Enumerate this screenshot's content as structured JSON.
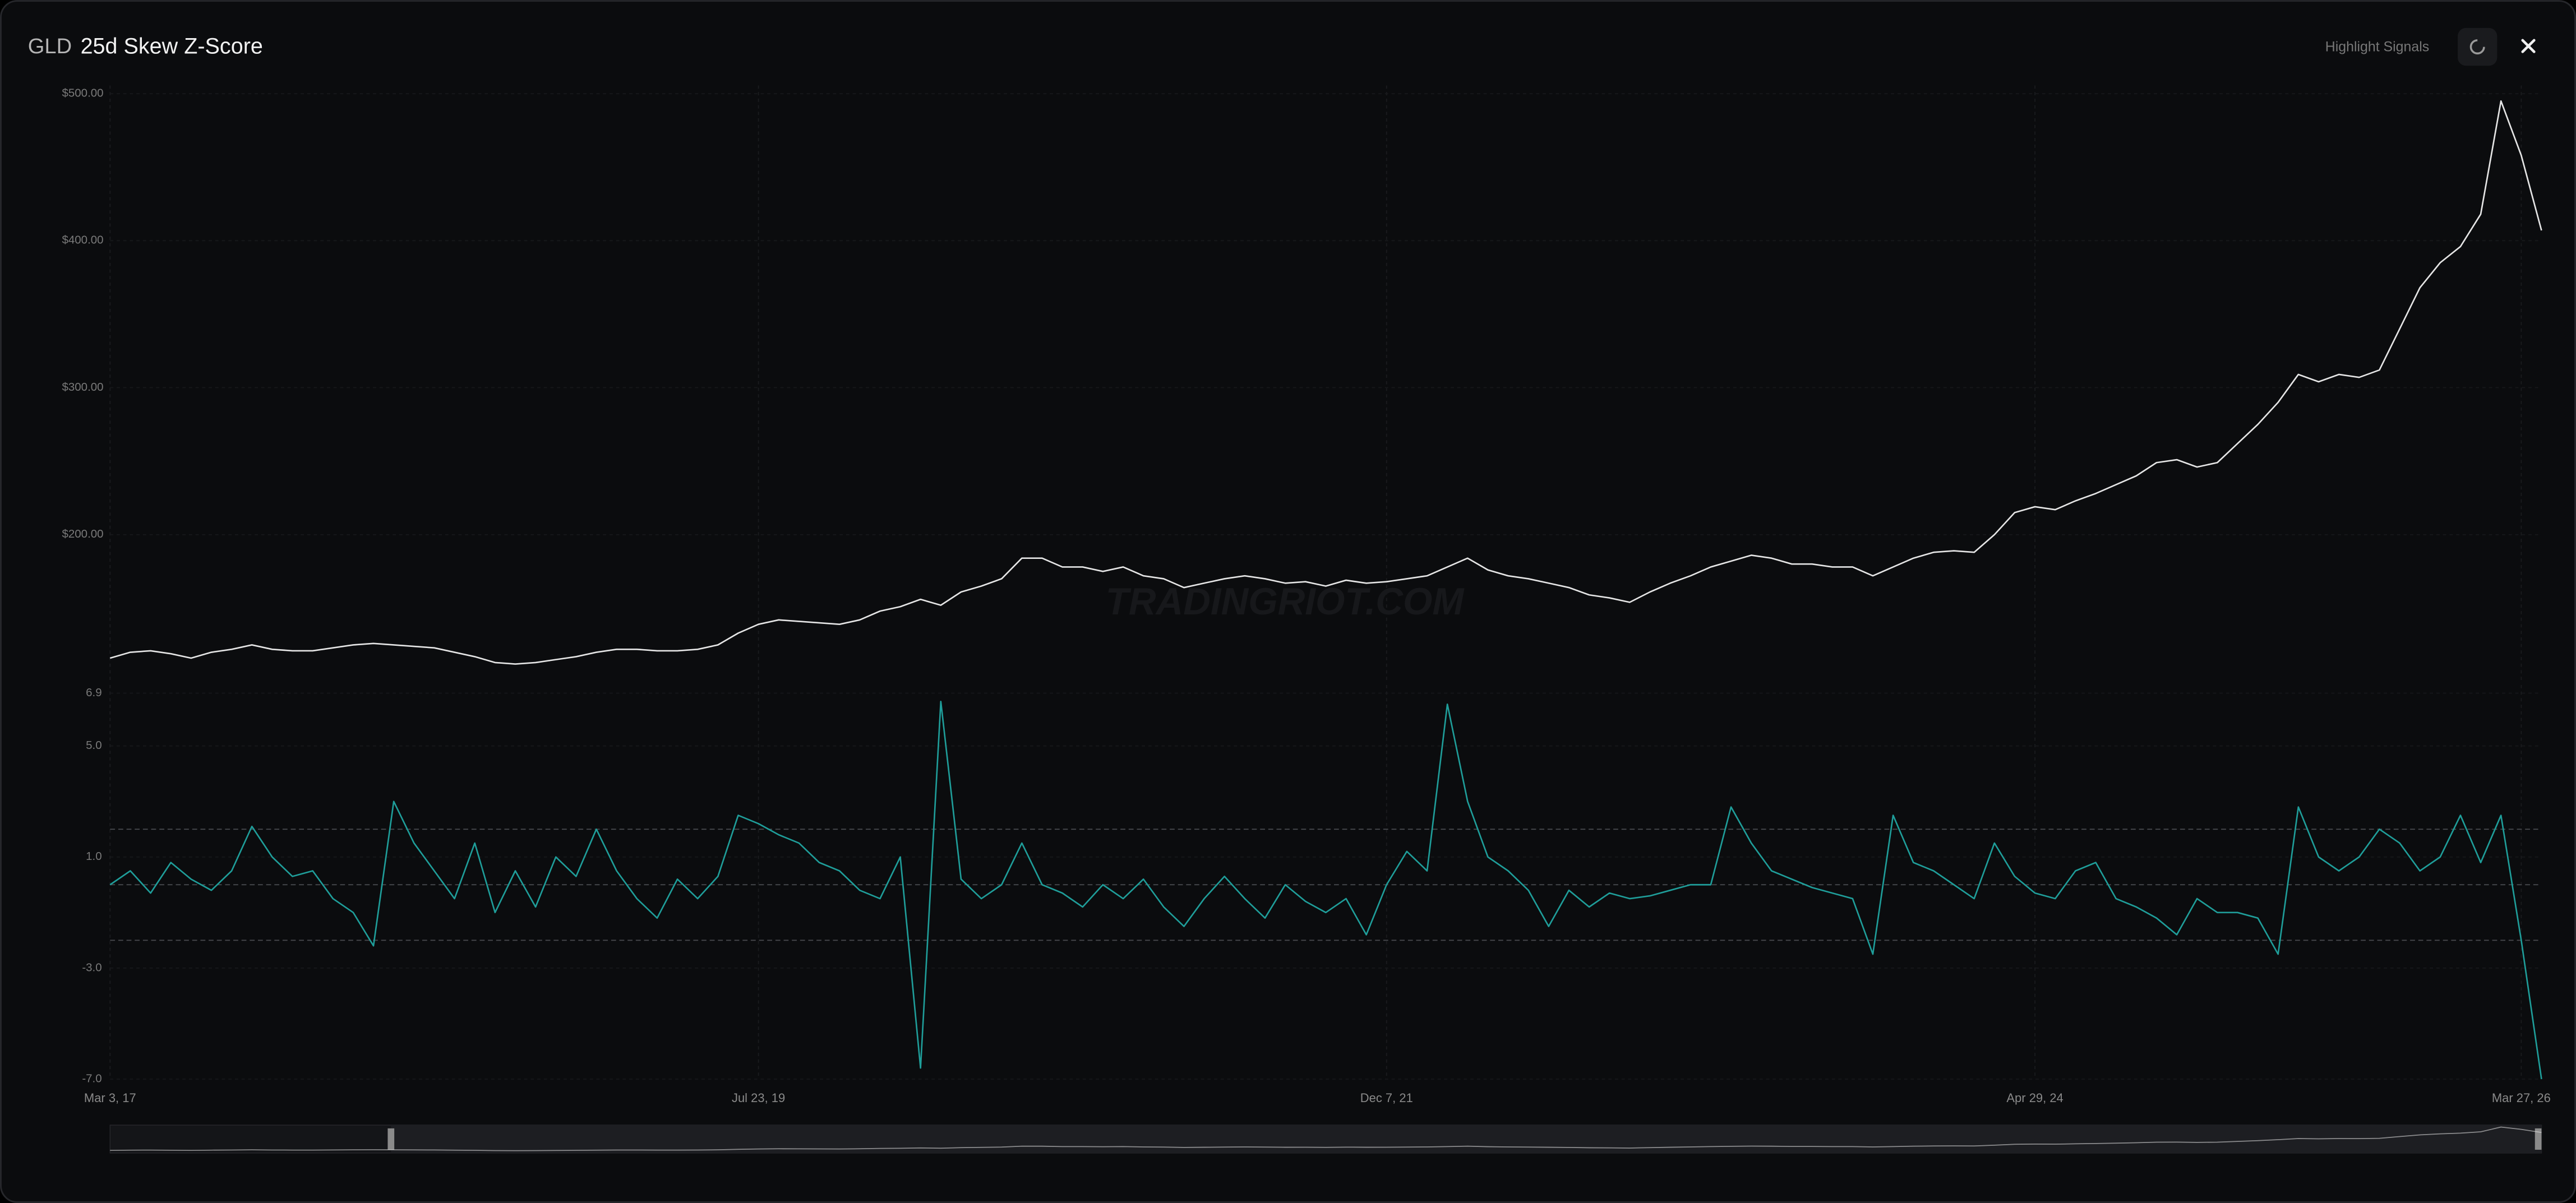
{
  "header": {
    "ticker": "GLD",
    "title": "25d Skew Z-Score",
    "button": "Highlight Signals"
  },
  "watermark": "TRADINGRIOT.COM",
  "chart_data": {
    "type": "line",
    "categories": [
      "Mar 3, 17",
      null,
      null,
      null,
      null,
      null,
      null,
      null,
      null,
      null,
      null,
      null,
      null,
      null,
      null,
      null,
      null,
      null,
      null,
      null,
      null,
      null,
      null,
      null,
      null,
      null,
      null,
      null,
      null,
      null,
      null,
      null,
      "Jul 23, 19",
      null,
      null,
      null,
      null,
      null,
      null,
      null,
      null,
      null,
      null,
      null,
      null,
      null,
      null,
      null,
      null,
      null,
      null,
      null,
      null,
      null,
      null,
      null,
      null,
      null,
      null,
      null,
      null,
      null,
      null,
      "Dec 7, 21",
      null,
      null,
      null,
      null,
      null,
      null,
      null,
      null,
      null,
      null,
      null,
      null,
      null,
      null,
      null,
      null,
      null,
      null,
      null,
      null,
      null,
      null,
      null,
      null,
      null,
      null,
      null,
      null,
      null,
      null,
      null,
      "Apr 29, 24",
      null,
      null,
      null,
      null,
      null,
      null,
      null,
      null,
      null,
      null,
      null,
      null,
      null,
      null,
      null,
      null,
      null,
      null,
      null,
      null,
      null,
      null,
      null,
      "Mar 27, 26",
      null
    ],
    "panels": [
      {
        "color": "#e6e6e6",
        "ylim": [
          100,
          500
        ],
        "yticks": [
          {
            "value": 200,
            "label": "$200.00"
          },
          {
            "value": 300,
            "label": "$300.00"
          },
          {
            "value": 400,
            "label": "$400.00"
          },
          {
            "value": 500,
            "label": "$500.00"
          }
        ],
        "values": [
          116,
          120,
          121,
          119,
          116,
          120,
          122,
          125,
          122,
          121,
          121,
          123,
          125,
          126,
          125,
          124,
          123,
          120,
          117,
          113,
          112,
          113,
          115,
          117,
          120,
          122,
          122,
          121,
          121,
          122,
          125,
          133,
          139,
          142,
          141,
          140,
          139,
          142,
          148,
          151,
          156,
          152,
          161,
          165,
          170,
          184,
          184,
          178,
          178,
          175,
          178,
          172,
          170,
          164,
          167,
          170,
          172,
          170,
          167,
          168,
          165,
          169,
          167,
          168,
          170,
          172,
          178,
          184,
          176,
          172,
          170,
          167,
          164,
          159,
          157,
          154,
          161,
          167,
          172,
          178,
          182,
          186,
          184,
          180,
          180,
          178,
          178,
          172,
          178,
          184,
          188,
          189,
          188,
          200,
          215,
          219,
          217,
          223,
          228,
          234,
          240,
          249,
          251,
          246,
          249,
          262,
          275,
          290,
          309,
          304,
          309,
          307,
          312,
          340,
          368,
          385,
          396,
          418,
          495,
          458,
          407
        ]
      },
      {
        "color": "#1f9e9a",
        "ylim": [
          -7,
          6.9
        ],
        "yticks": [
          {
            "value": -7,
            "label": "-7.0"
          },
          {
            "value": -3,
            "label": "-3.0"
          },
          {
            "value": 1,
            "label": "1.0"
          },
          {
            "value": 5,
            "label": "5.0"
          },
          6.9
        ],
        "reference_lines": [
          2,
          0,
          -2
        ],
        "values": [
          0.0,
          0.5,
          -0.3,
          0.8,
          0.2,
          -0.2,
          0.5,
          2.1,
          1.0,
          0.3,
          0.5,
          -0.5,
          -1.0,
          -2.2,
          3.0,
          1.5,
          0.5,
          -0.5,
          1.5,
          -1.0,
          0.5,
          -0.8,
          1.0,
          0.3,
          2.0,
          0.5,
          -0.5,
          -1.2,
          0.2,
          -0.5,
          0.3,
          2.5,
          2.2,
          1.8,
          1.5,
          0.8,
          0.5,
          -0.2,
          -0.5,
          1.0,
          -6.6,
          6.6,
          0.2,
          -0.5,
          0.0,
          1.5,
          0.0,
          -0.3,
          -0.8,
          0.0,
          -0.5,
          0.2,
          -0.8,
          -1.5,
          -0.5,
          0.3,
          -0.5,
          -1.2,
          0.0,
          -0.6,
          -1.0,
          -0.5,
          -1.8,
          0.0,
          1.2,
          0.5,
          6.5,
          3.0,
          1.0,
          0.5,
          -0.2,
          -1.5,
          -0.2,
          -0.8,
          -0.3,
          -0.5,
          -0.4,
          -0.2,
          0.0,
          0.0,
          2.8,
          1.5,
          0.5,
          0.2,
          -0.1,
          -0.3,
          -0.5,
          -2.5,
          2.5,
          0.8,
          0.5,
          0.0,
          -0.5,
          1.5,
          0.3,
          -0.3,
          -0.5,
          0.5,
          0.8,
          -0.5,
          -0.8,
          -1.2,
          -1.8,
          -0.5,
          -1.0,
          -1.0,
          -1.2,
          -2.5,
          2.8,
          1.0,
          0.5,
          1.0,
          2.0,
          1.5,
          0.5,
          1.0,
          2.5,
          0.8,
          2.5,
          -2.0,
          -7.0
        ]
      }
    ]
  }
}
